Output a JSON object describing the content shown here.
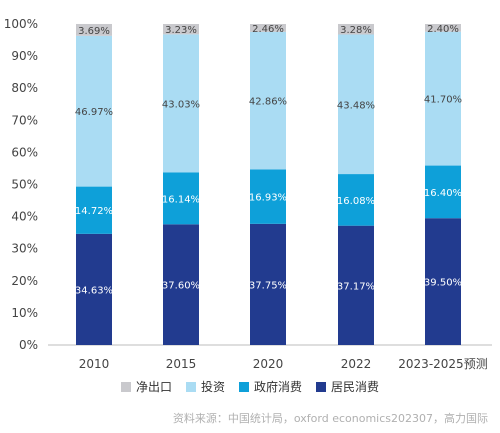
{
  "chart_data": {
    "type": "bar",
    "stacked": true,
    "categories": [
      "2010",
      "2015",
      "2020",
      "2022",
      "2023-2025预测"
    ],
    "series": [
      {
        "name": "居民消费",
        "color": "#223b8f",
        "values": [
          34.63,
          37.6,
          37.75,
          37.17,
          39.5
        ],
        "labels": [
          "34.63%",
          "37.60%",
          "37.75%",
          "37.17%",
          "39.50%"
        ]
      },
      {
        "name": "政府消费",
        "color": "#0ea0d9",
        "values": [
          14.72,
          16.14,
          16.93,
          16.08,
          16.4
        ],
        "labels": [
          "14.72%",
          "16.14%",
          "16.93%",
          "16.08%",
          "16.40%"
        ]
      },
      {
        "name": "投资",
        "color": "#aadcf3",
        "values": [
          46.97,
          43.03,
          42.86,
          43.48,
          41.7
        ],
        "labels": [
          "46.97%",
          "43.03%",
          "42.86%",
          "43.48%",
          "41.70%"
        ]
      },
      {
        "name": "净出口",
        "color": "#c9c9cd",
        "values": [
          3.69,
          3.23,
          2.46,
          3.28,
          2.4
        ],
        "labels": [
          "3.69%",
          "3.23%",
          "2.46%",
          "3.28%",
          "2.40%"
        ]
      }
    ],
    "ylim": [
      0,
      100
    ],
    "yticks": [
      "0%",
      "10%",
      "20%",
      "30%",
      "40%",
      "50%",
      "60%",
      "70%",
      "80%",
      "90%",
      "100%"
    ],
    "legend_order": [
      "净出口",
      "投资",
      "政府消费",
      "居民消费"
    ],
    "legend_position": "bottom",
    "grid": false
  },
  "source_note": "资料来源：中国统计局，oxford economics202307，高力国际"
}
